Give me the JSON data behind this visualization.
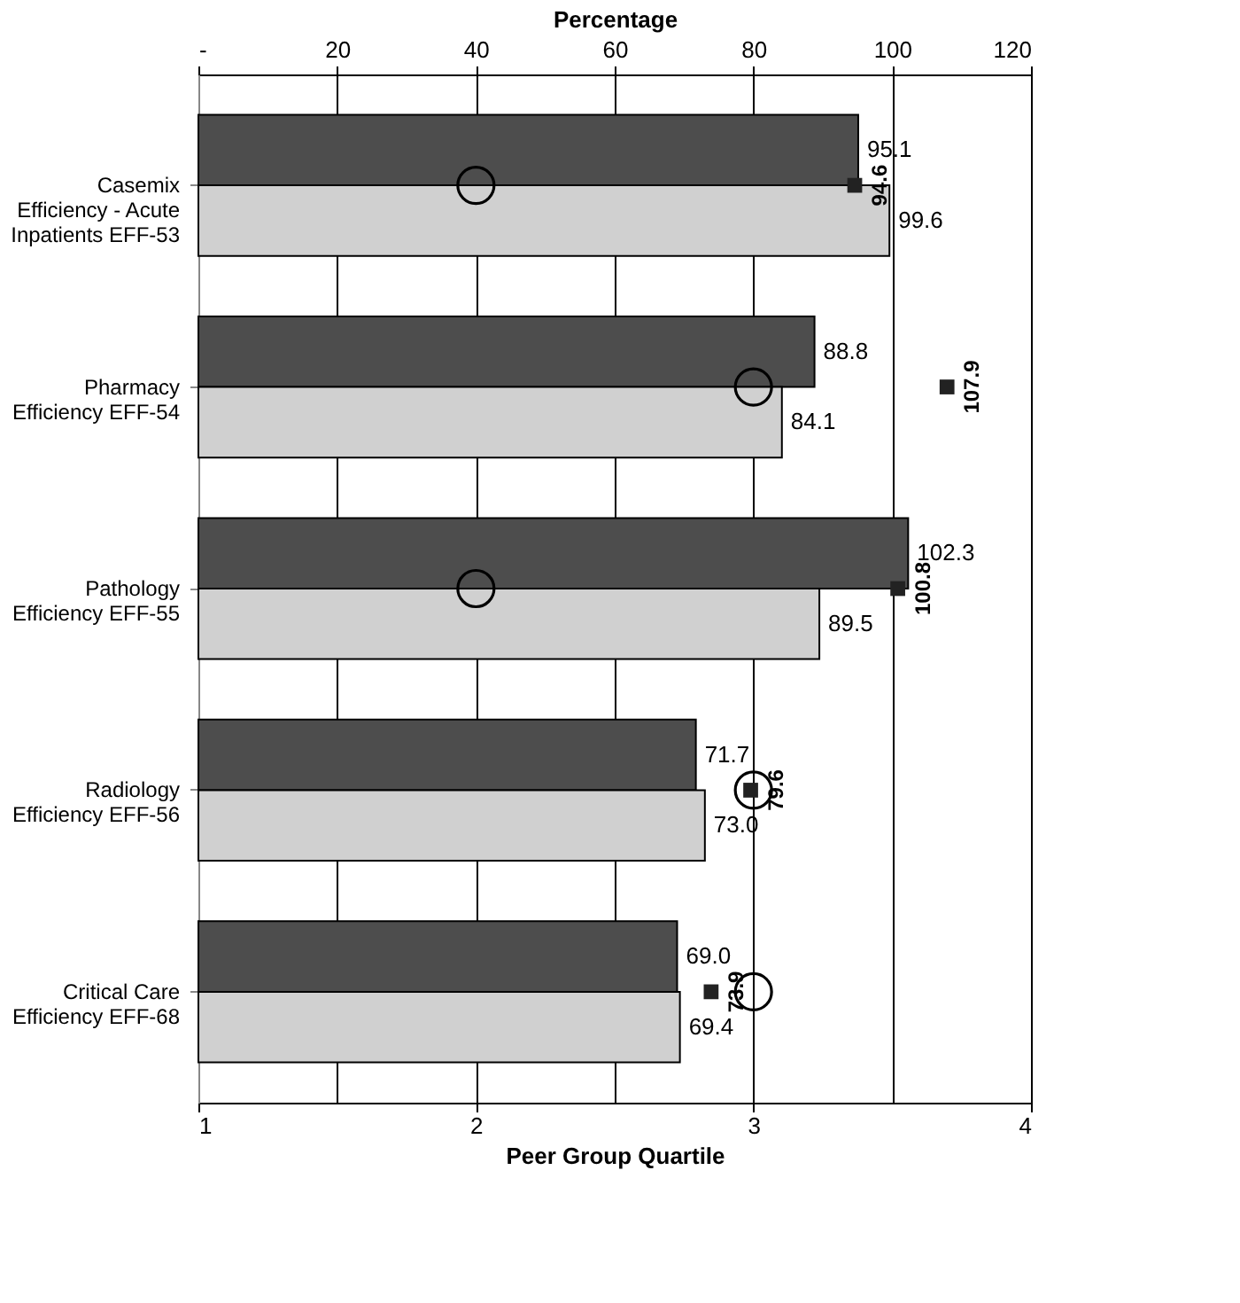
{
  "chart_data": {
    "type": "bar",
    "orientation": "horizontal",
    "xlabel": "Percentage",
    "x2label": "Peer Group Quartile",
    "categories": [
      "Casemix\nEfficiency - Acute\nInpatients EFF-53",
      "Pharmacy\nEfficiency EFF-54",
      "Pathology\nEfficiency EFF-55",
      "Radiology\nEfficiency EFF-56",
      "Critical Care\nEfficiency EFF-68"
    ],
    "series": [
      {
        "color": "#4d4d4d",
        "values": [
          95.1,
          88.8,
          102.3,
          71.7,
          69.0
        ],
        "value_labels": [
          "95.1",
          "88.8",
          "102.3",
          "71.7",
          "69.0"
        ]
      },
      {
        "color": "#d0d0d0",
        "values": [
          99.6,
          84.1,
          89.5,
          73.0,
          69.4
        ],
        "value_labels": [
          "99.6",
          "84.1",
          "89.5",
          "73.0",
          "69.4"
        ]
      },
      {
        "type": "scatter",
        "marker": "square",
        "color": "#222222",
        "values": [
          94.6,
          107.9,
          100.8,
          79.6,
          73.9
        ],
        "value_labels": [
          "94.6",
          "107.9",
          "100.8",
          "79.6",
          "73.9"
        ]
      },
      {
        "type": "scatter",
        "marker": "circle",
        "axis": "x2",
        "color": "#000000",
        "values": [
          2,
          3,
          2,
          3,
          3
        ]
      }
    ],
    "xlim": [
      0,
      120
    ],
    "xticks": [
      {
        "value": 0,
        "label": "-"
      },
      20,
      40,
      60,
      80,
      100,
      120
    ],
    "x2lim": [
      1,
      4
    ],
    "x2ticks": [
      1,
      2,
      3,
      4
    ],
    "grid": "x"
  }
}
